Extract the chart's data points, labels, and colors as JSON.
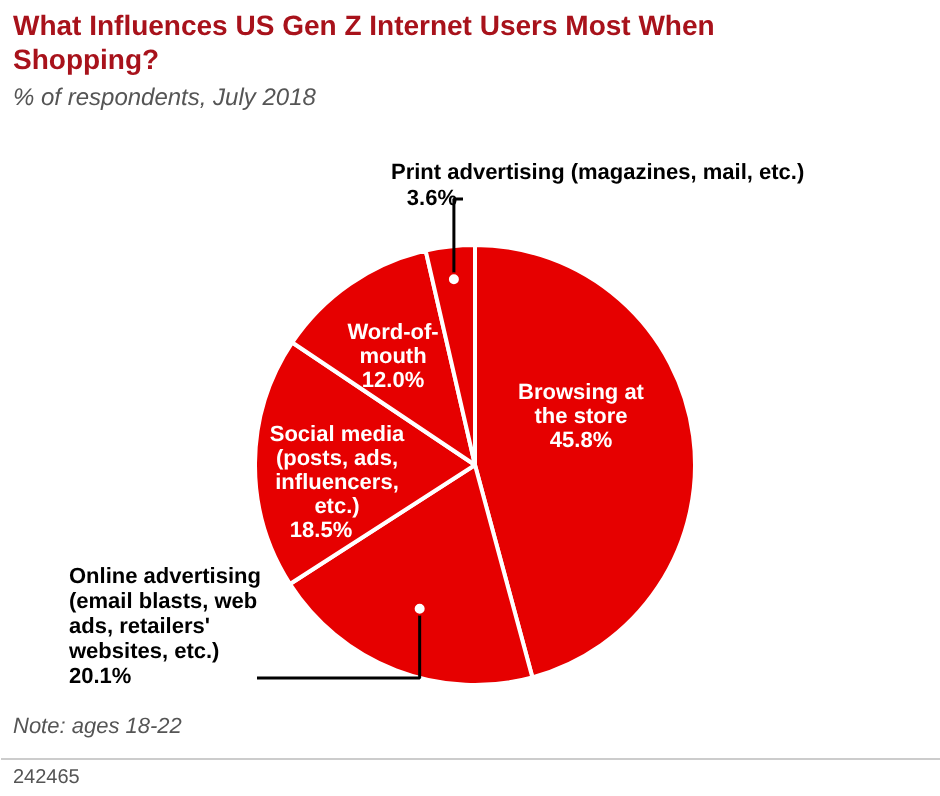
{
  "chart_data": {
    "type": "pie",
    "title": "What Influences US Gen Z Internet Users Most When Shopping?",
    "subtitle": "% of respondents, July 2018",
    "categories": [
      "Browsing at the store",
      "Online advertising (email blasts, web ads, retailers' websites, etc.)",
      "Social media (posts, ads, influencers, etc.)",
      "Word-of-mouth",
      "Print advertising (magazines, mail, etc.)"
    ],
    "values": [
      45.8,
      20.1,
      18.5,
      12.0,
      3.6
    ],
    "colors": [
      "#e60000",
      "#e60000",
      "#e60000",
      "#e60000",
      "#e60000"
    ],
    "value_labels": [
      "45.8%",
      "20.1%",
      "18.5%",
      "12.0%",
      "3.6%"
    ],
    "annotations": [
      "Note: ages 18-22",
      "242465"
    ]
  }
}
